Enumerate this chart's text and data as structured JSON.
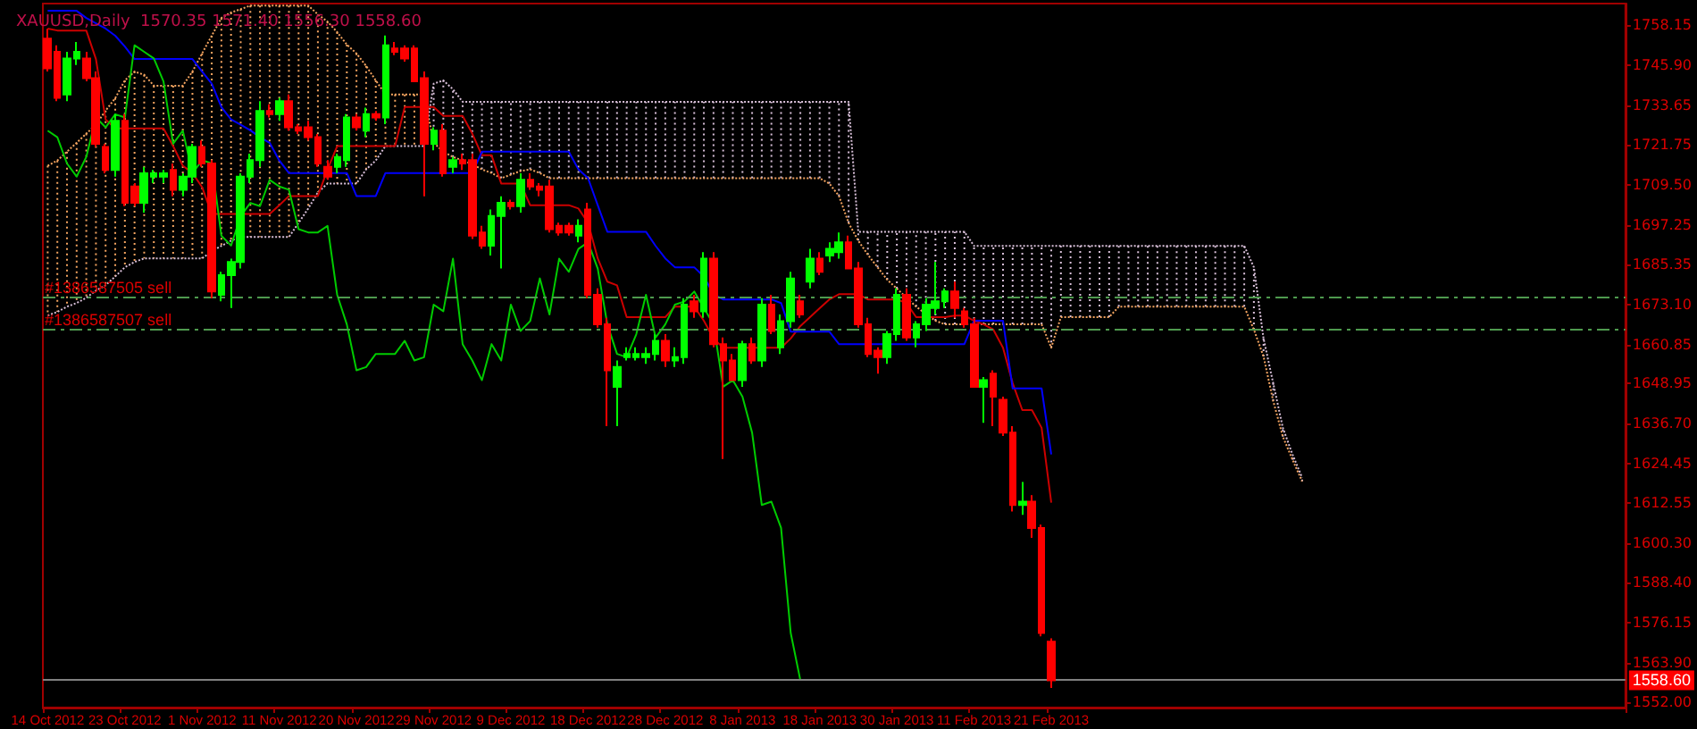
{
  "chart_data": {
    "type": "candlestick",
    "title": "XAUUSD,Daily  1570.35 1571.40 1556.30 1558.60",
    "categories": [
      "14 Oct 2012",
      null,
      null,
      null,
      null,
      null,
      null,
      null,
      "23 Oct 2012",
      null,
      null,
      null,
      null,
      null,
      null,
      null,
      "1 Nov 2012",
      null,
      null,
      null,
      null,
      null,
      null,
      null,
      "11 Nov 2012",
      null,
      null,
      null,
      null,
      null,
      null,
      null,
      "20 Nov 2012",
      null,
      null,
      null,
      null,
      null,
      null,
      null,
      "29 Nov 2012",
      null,
      null,
      null,
      null,
      null,
      null,
      null,
      "9 Dec 2012",
      null,
      null,
      null,
      null,
      null,
      null,
      null,
      "18 Dec 2012",
      null,
      null,
      null,
      null,
      null,
      null,
      null,
      "28 Dec 2012",
      null,
      null,
      null,
      null,
      null,
      null,
      null,
      "8 Jan 2013",
      null,
      null,
      null,
      null,
      null,
      null,
      null,
      "18 Jan 2013",
      null,
      null,
      null,
      null,
      null,
      null,
      null,
      "30 Jan 2013",
      null,
      null,
      null,
      null,
      null,
      null,
      null,
      "11 Feb 2013",
      null,
      null,
      null,
      null,
      null,
      null,
      null,
      "21 Feb 2013",
      null,
      null,
      null,
      null,
      null,
      null,
      null,
      null,
      null,
      null,
      null,
      null,
      null,
      null,
      null,
      null,
      null,
      null,
      null,
      null,
      null,
      null,
      null,
      null,
      null,
      null,
      null,
      null,
      null,
      null,
      null,
      null,
      null,
      null,
      null,
      null,
      null,
      null,
      null,
      null,
      null,
      null,
      null,
      null,
      null,
      null,
      null,
      null,
      null,
      null,
      null,
      null,
      null,
      null,
      null,
      null,
      null,
      null,
      null
    ],
    "ohlc": [
      [
        1754,
        1757,
        1744,
        1745
      ],
      [
        1750,
        1752,
        1735,
        1736
      ],
      [
        1737,
        1750,
        1735,
        1748
      ],
      [
        1748,
        1753,
        1746,
        1750
      ],
      [
        1748,
        1750,
        1741,
        1742
      ],
      [
        1742,
        1744,
        1721,
        1722
      ],
      [
        1721,
        1722,
        1713,
        1714
      ],
      [
        1714,
        1731,
        1712,
        1729
      ],
      [
        1729,
        1731,
        1703,
        1704
      ],
      [
        1709,
        1710,
        1703,
        1704
      ],
      [
        1704,
        1715,
        1701,
        1713
      ],
      [
        1712,
        1714,
        1710,
        1713
      ],
      [
        1712,
        1714,
        1710,
        1713
      ],
      [
        1714,
        1716,
        1706,
        1708
      ],
      [
        1708,
        1713,
        1706,
        1712
      ],
      [
        1712,
        1722,
        1710,
        1721
      ],
      [
        1721,
        1723,
        1715,
        1716
      ],
      [
        1716,
        1717,
        1675,
        1677
      ],
      [
        1676,
        1683,
        1674,
        1682
      ],
      [
        1682,
        1687,
        1672,
        1686
      ],
      [
        1686,
        1713,
        1684,
        1712
      ],
      [
        1712,
        1719,
        1710,
        1717
      ],
      [
        1717,
        1735,
        1715,
        1732
      ],
      [
        1732,
        1734,
        1730,
        1731
      ],
      [
        1731,
        1736,
        1729,
        1735
      ],
      [
        1735,
        1737,
        1726,
        1727
      ],
      [
        1727,
        1728,
        1725,
        1726
      ],
      [
        1727,
        1729,
        1723,
        1724
      ],
      [
        1724,
        1725,
        1715,
        1716
      ],
      [
        1715,
        1717,
        1711,
        1712
      ],
      [
        1715,
        1719,
        1713,
        1718
      ],
      [
        1717,
        1731,
        1715,
        1730
      ],
      [
        1730,
        1731,
        1726,
        1727
      ],
      [
        1726,
        1733,
        1724,
        1731
      ],
      [
        1731,
        1732,
        1729,
        1730
      ],
      [
        1730,
        1755,
        1728,
        1752
      ],
      [
        1751,
        1753,
        1749,
        1750
      ],
      [
        1751,
        1752,
        1747,
        1748
      ],
      [
        1751,
        1752,
        1741,
        1741
      ],
      [
        1742,
        1744,
        1706,
        1722
      ],
      [
        1722,
        1727,
        1720,
        1726
      ],
      [
        1726,
        1728,
        1712,
        1713
      ],
      [
        1715,
        1718,
        1713,
        1717
      ],
      [
        1717,
        1719,
        1714,
        1716
      ],
      [
        1717,
        1719,
        1693,
        1694
      ],
      [
        1695,
        1697,
        1690,
        1691
      ],
      [
        1691,
        1702,
        1688,
        1700
      ],
      [
        1700,
        1706,
        1684,
        1704
      ],
      [
        1704,
        1705,
        1702,
        1703
      ],
      [
        1703,
        1713,
        1701,
        1711
      ],
      [
        1711,
        1713,
        1708,
        1709
      ],
      [
        1709,
        1710,
        1706,
        1708
      ],
      [
        1709,
        1711,
        1695,
        1696
      ],
      [
        1697,
        1698,
        1694,
        1695
      ],
      [
        1697,
        1698,
        1694,
        1695
      ],
      [
        1694,
        1699,
        1692,
        1697
      ],
      [
        1702,
        1704,
        1675,
        1676
      ],
      [
        1676,
        1678,
        1666,
        1667
      ],
      [
        1667,
        1669,
        1636,
        1653
      ],
      [
        1648,
        1656,
        1636,
        1654
      ],
      [
        1657,
        1660,
        1656,
        1658
      ],
      [
        1657,
        1660,
        1656,
        1658
      ],
      [
        1657,
        1660,
        1655,
        1658
      ],
      [
        1658,
        1664,
        1656,
        1662
      ],
      [
        1662,
        1664,
        1654,
        1656
      ],
      [
        1656,
        1660,
        1654,
        1657
      ],
      [
        1657,
        1675,
        1655,
        1673
      ],
      [
        1674,
        1676,
        1669,
        1671
      ],
      [
        1671,
        1689,
        1669,
        1687
      ],
      [
        1687,
        1689,
        1660,
        1661
      ],
      [
        1661,
        1663,
        1626,
        1656
      ],
      [
        1656,
        1658,
        1650,
        1650
      ],
      [
        1650,
        1662,
        1648,
        1661
      ],
      [
        1661,
        1663,
        1655,
        1656
      ],
      [
        1656,
        1675,
        1654,
        1673
      ],
      [
        1673,
        1676,
        1664,
        1665
      ],
      [
        1660,
        1670,
        1658,
        1668
      ],
      [
        1668,
        1683,
        1666,
        1681
      ],
      [
        1674,
        1676,
        1669,
        1670
      ],
      [
        1680,
        1690,
        1678,
        1687
      ],
      [
        1687,
        1689,
        1682,
        1683
      ],
      [
        1688,
        1692,
        1686,
        1690
      ],
      [
        1689,
        1695,
        1687,
        1692
      ],
      [
        1692,
        1694,
        1684,
        1684
      ],
      [
        1684,
        1686,
        1666,
        1667
      ],
      [
        1667,
        1669,
        1657,
        1658
      ],
      [
        1659,
        1660,
        1652,
        1657
      ],
      [
        1657,
        1665,
        1655,
        1664
      ],
      [
        1664,
        1678,
        1662,
        1676
      ],
      [
        1676,
        1678,
        1662,
        1663
      ],
      [
        1663,
        1668,
        1660,
        1667
      ],
      [
        1667,
        1675,
        1665,
        1673
      ],
      [
        1672,
        1686,
        1670,
        1674
      ],
      [
        1674,
        1678,
        1672,
        1677
      ],
      [
        1677,
        1680,
        1669,
        1672
      ],
      [
        1671,
        1672,
        1666,
        1667
      ],
      [
        1667,
        1669,
        1648,
        1648
      ],
      [
        1648,
        1651,
        1637,
        1650
      ],
      [
        1652,
        1653,
        1636,
        1645
      ],
      [
        1644,
        1645,
        1633,
        1634
      ],
      [
        1634,
        1636,
        1610,
        1612
      ],
      [
        1612,
        1619,
        1609,
        1613
      ],
      [
        1613,
        1615,
        1602,
        1605
      ],
      [
        1605,
        1606,
        1572,
        1573
      ],
      [
        1570.35,
        1571.4,
        1556.3,
        1558.6
      ],
      null,
      null,
      null,
      null,
      null,
      null,
      null,
      null,
      null,
      null,
      null,
      null,
      null,
      null,
      null,
      null,
      null,
      null,
      null,
      null,
      null,
      null,
      null,
      null,
      null,
      null,
      null,
      null,
      null,
      null,
      null,
      null,
      null,
      null,
      null,
      null,
      null,
      null,
      null,
      null,
      null,
      null,
      null,
      null,
      null,
      null,
      null,
      null,
      null,
      null,
      null,
      null,
      null,
      null,
      null,
      null,
      null,
      null,
      null
    ],
    "colors": [
      "#ff0000",
      "#ff0000",
      "#00ff00",
      "#00ff00",
      "#ff0000",
      "#ff0000",
      "#ff0000",
      "#00ff00",
      "#ff0000",
      "#ff0000",
      "#00ff00",
      "#00ff00",
      "#00ff00",
      "#ff0000",
      "#00ff00",
      "#00ff00",
      "#ff0000",
      "#ff0000",
      "#00ff00",
      "#00ff00",
      "#00ff00",
      "#00ff00",
      "#00ff00",
      "#ff0000",
      "#00ff00",
      "#ff0000",
      "#ff0000",
      "#ff0000",
      "#ff0000",
      "#ff0000",
      "#00ff00",
      "#00ff00",
      "#ff0000",
      "#00ff00",
      "#ff0000",
      "#00ff00",
      "#ff0000",
      "#ff0000",
      "#ff0000",
      "#ff0000",
      "#00ff00",
      "#ff0000",
      "#00ff00",
      "#ff0000",
      "#ff0000",
      "#ff0000",
      "#00ff00",
      "#00ff00",
      "#ff0000",
      "#00ff00",
      "#ff0000",
      "#ff0000",
      "#ff0000",
      "#ff0000",
      "#ff0000",
      "#00ff00",
      "#ff0000",
      "#ff0000",
      "#ff0000",
      "#00ff00",
      "#00ff00",
      "#00ff00",
      "#00ff00",
      "#00ff00",
      "#ff0000",
      "#00ff00",
      "#00ff00",
      "#ff0000",
      "#00ff00",
      "#ff0000",
      "#ff0000",
      "#ff0000",
      "#00ff00",
      "#ff0000",
      "#00ff00",
      "#ff0000",
      "#00ff00",
      "#00ff00",
      "#ff0000",
      "#00ff00",
      "#ff0000",
      "#00ff00",
      "#00ff00",
      "#ff0000",
      "#ff0000",
      "#ff0000",
      "#ff0000",
      "#00ff00",
      "#00ff00",
      "#ff0000",
      "#00ff00",
      "#00ff00",
      "#00ff00",
      "#00ff00",
      "#ff0000",
      "#ff0000",
      "#ff0000",
      "#00ff00",
      "#ff0000",
      "#ff0000",
      "#ff0000",
      "#00ff00",
      "#ff0000",
      "#ff0000",
      "#ff0000",
      null,
      null,
      null,
      null,
      null,
      null,
      null,
      null,
      null,
      null,
      null,
      null,
      null,
      null,
      null,
      null,
      null,
      null,
      null,
      null,
      null,
      null,
      null,
      null,
      null,
      null,
      null,
      null,
      null,
      null,
      null,
      null,
      null,
      null,
      null,
      null,
      null,
      null,
      null,
      null,
      null,
      null,
      null,
      null,
      null,
      null,
      null,
      null,
      null,
      null,
      null,
      null,
      null,
      null,
      null,
      null,
      null,
      null,
      null
    ],
    "series": [
      {
        "type": "line",
        "color": "#f4a460",
        "line_style": "dotted",
        "values": [
          1715.3,
          1716.9,
          1719.6,
          1722.3,
          1725.1,
          1727.8,
          1732.1,
          1735.9,
          1741.3,
          1744.0,
          1743.0,
          1739.7,
          1739.7,
          1739.7,
          1739.7,
          1744.0,
          1749.5,
          1754.9,
          1760.3,
          1762.0,
          1763.0,
          1764.1,
          1764.1,
          1764.1,
          1764.1,
          1764.1,
          1764.1,
          1764.1,
          1761.4,
          1759.2,
          1756.0,
          1752.2,
          1749.5,
          1745.7,
          1741.3,
          1737.0,
          1737.0,
          1737.0,
          1737.0,
          1737.0,
          1722.3,
          1719.6,
          1718.0,
          1716.9,
          1715.8,
          1714.2,
          1713.1,
          1711.5,
          1712.6,
          1713.7,
          1714.2,
          1713.1,
          1711.5,
          1711.5,
          1711.5,
          1711.5,
          1711.5,
          1711.5,
          1711.5,
          1711.5,
          1711.5,
          1711.5,
          1711.5,
          1711.5,
          1711.5,
          1711.5,
          1711.5,
          1711.5,
          1711.5,
          1711.5,
          1711.5,
          1711.5,
          1711.5,
          1711.5,
          1711.5,
          1711.5,
          1711.5,
          1711.5,
          1711.5,
          1711.5,
          1711.5,
          1709.9,
          1706.1,
          1697.9,
          1692.5,
          1688.2,
          1684.4,
          1680.6,
          1677.9,
          1675.1,
          1672.4,
          1670.2,
          1668.1,
          1667.0,
          1667.0,
          1667.0,
          1667.0,
          1667.0,
          1667.0,
          1667.0,
          1667.0,
          1667.0,
          1667.0,
          1667.0,
          1659.9,
          1669.2,
          1669.2,
          1669.2,
          1669.2,
          1669.2,
          1669.2,
          1672.4,
          1672.4,
          1672.4,
          1672.4,
          1672.4,
          1672.4,
          1672.4,
          1672.4,
          1672.4,
          1672.4,
          1672.4,
          1672.4,
          1672.4,
          1672.4,
          1665.4,
          1657.2,
          1643.7,
          1632.8,
          1625.8,
          1619.2,
          null,
          null,
          null,
          null,
          null,
          null,
          null,
          null,
          null,
          null,
          null,
          null,
          null,
          null,
          null,
          null,
          null,
          null,
          null,
          null,
          null,
          null,
          null,
          null,
          null,
          null,
          null,
          null,
          null,
          null,
          null,
          null,
          null
        ]
      },
      {
        "type": "line",
        "color": "#d8bfd8",
        "line_style": "dotted",
        "values": [
          1669.7,
          1670.8,
          1672.4,
          1673.5,
          1675.1,
          1677.3,
          1678.9,
          1681.6,
          1684.4,
          1686.0,
          1687.1,
          1687.1,
          1687.1,
          1687.1,
          1687.1,
          1687.1,
          1687.1,
          1689.2,
          1690.9,
          1692.5,
          1693.6,
          1693.6,
          1693.6,
          1693.6,
          1693.6,
          1693.6,
          1697.9,
          1702.3,
          1707.2,
          1709.9,
          1709.9,
          1709.9,
          1709.9,
          1714.2,
          1716.9,
          1721.3,
          1721.3,
          1721.3,
          1721.3,
          1721.3,
          1740.3,
          1741.3,
          1738.6,
          1734.8,
          1734.8,
          1734.8,
          1734.8,
          1734.8,
          1734.8,
          1734.8,
          1734.8,
          1734.8,
          1734.8,
          1734.8,
          1734.8,
          1734.8,
          1734.8,
          1734.8,
          1734.8,
          1734.8,
          1734.8,
          1734.8,
          1734.8,
          1734.8,
          1734.8,
          1734.8,
          1734.8,
          1734.8,
          1734.8,
          1734.8,
          1734.8,
          1734.8,
          1734.8,
          1734.8,
          1734.8,
          1734.8,
          1734.8,
          1734.8,
          1734.8,
          1734.8,
          1734.8,
          1734.8,
          1734.8,
          1734.8,
          1695.2,
          1695.2,
          1695.2,
          1695.2,
          1695.2,
          1695.2,
          1695.2,
          1695.2,
          1695.2,
          1695.2,
          1695.2,
          1695.2,
          1690.9,
          1690.9,
          1690.9,
          1690.9,
          1690.9,
          1690.9,
          1690.9,
          1690.9,
          1690.9,
          1690.9,
          1690.9,
          1690.9,
          1690.9,
          1690.9,
          1690.9,
          1690.9,
          1690.9,
          1690.9,
          1690.9,
          1690.9,
          1690.9,
          1690.9,
          1690.9,
          1690.9,
          1690.9,
          1690.9,
          1690.9,
          1690.9,
          1690.9,
          1684.4,
          1662.7,
          1649.1,
          1635.5,
          1627.4,
          1620.3,
          null,
          null,
          null,
          null,
          null,
          null,
          null,
          null,
          null,
          null,
          null,
          null,
          null,
          null,
          null,
          null,
          null,
          null,
          null,
          null,
          null,
          null,
          null,
          null,
          null,
          null,
          null,
          null,
          null,
          null,
          null,
          null,
          null
        ]
      },
      {
        "type": "line",
        "color": "#cc0000",
        "values": [
          1757.1,
          1756.5,
          1756.5,
          1756.5,
          1756.5,
          1747.8,
          1729.4,
          1726.7,
          1726.7,
          1726.7,
          1726.7,
          1726.7,
          1726.7,
          1721.3,
          1715.3,
          1713.1,
          1708.8,
          1700.6,
          1700.6,
          1700.6,
          1700.6,
          1700.6,
          1700.6,
          1700.6,
          1703.3,
          1706.1,
          1706.1,
          1706.1,
          1706.1,
          1714.2,
          1721.3,
          1721.3,
          1721.3,
          1721.3,
          1721.3,
          1721.3,
          1721.3,
          1733.2,
          1733.2,
          1733.2,
          1733.2,
          1730.5,
          1730.5,
          1730.5,
          1725.1,
          1718.5,
          1718.5,
          1709.9,
          1709.9,
          1709.9,
          1703.3,
          1703.3,
          1703.3,
          1703.3,
          1703.3,
          1702.3,
          1697.9,
          1687.1,
          1680.0,
          1678.9,
          1669.2,
          1669.2,
          1669.2,
          1669.2,
          1669.2,
          1672.4,
          1672.4,
          1672.4,
          1668.1,
          1662.7,
          1659.9,
          1659.9,
          1659.9,
          1659.9,
          1659.9,
          1659.9,
          1659.9,
          1662.7,
          1666.5,
          1669.2,
          1671.9,
          1674.6,
          1676.2,
          1676.2,
          1676.2,
          1674.6,
          1674.6,
          1674.6,
          1674.6,
          1673.5,
          1669.2,
          1669.2,
          1669.2,
          1669.2,
          1669.7,
          1669.7,
          1668.1,
          1667.0,
          1665.4,
          1659.9,
          1649.1,
          1640.9,
          1640.9,
          1635.5,
          1612.7,
          null,
          null,
          null,
          null,
          null,
          null,
          null,
          null,
          null,
          null,
          null,
          null,
          null,
          null,
          null,
          null,
          null,
          null,
          null,
          null,
          null,
          null,
          null,
          null,
          null,
          null,
          null,
          null,
          null,
          null,
          null,
          null,
          null,
          null,
          null,
          null,
          null,
          null,
          null,
          null,
          null,
          null,
          null,
          null,
          null,
          null,
          null,
          null,
          null,
          null,
          null,
          null,
          null,
          null,
          null,
          null,
          null,
          null,
          null
        ]
      },
      {
        "type": "line",
        "color": "#0000ff",
        "values": [
          1762.5,
          1762.5,
          1762.5,
          1762.5,
          1760.3,
          1758.7,
          1757.1,
          1754.9,
          1751.6,
          1747.8,
          1747.8,
          1747.8,
          1747.8,
          1747.8,
          1747.8,
          1747.8,
          1744.0,
          1740.3,
          1733.2,
          1729.4,
          1727.8,
          1726.1,
          1724.0,
          1722.3,
          1716.9,
          1713.1,
          1713.1,
          1713.1,
          1713.1,
          1713.1,
          1713.1,
          1713.1,
          1706.1,
          1706.1,
          1706.1,
          1713.1,
          1713.1,
          1713.1,
          1713.1,
          1713.1,
          1713.1,
          1713.1,
          1713.1,
          1713.1,
          1713.1,
          1719.6,
          1719.6,
          1719.6,
          1719.6,
          1719.6,
          1719.6,
          1719.6,
          1719.6,
          1719.6,
          1719.6,
          1714.2,
          1711.5,
          1703.3,
          1695.2,
          1695.2,
          1695.2,
          1695.2,
          1695.2,
          1690.9,
          1687.1,
          1684.4,
          1684.4,
          1684.4,
          1681.6,
          1676.2,
          1674.6,
          1674.6,
          1674.6,
          1674.6,
          1674.6,
          1674.6,
          1673.5,
          1664.8,
          1664.8,
          1664.8,
          1664.8,
          1664.8,
          1661.0,
          1661.0,
          1661.0,
          1661.0,
          1661.0,
          1661.0,
          1661.0,
          1661.0,
          1661.0,
          1661.0,
          1661.0,
          1661.0,
          1661.0,
          1661.0,
          1668.1,
          1668.1,
          1668.1,
          1668.1,
          1647.5,
          1647.5,
          1647.5,
          1647.5,
          1627.4,
          null,
          null,
          null,
          null,
          null,
          null,
          null,
          null,
          null,
          null,
          null,
          null,
          null,
          null,
          null,
          null,
          null,
          null,
          null,
          null,
          null,
          null,
          null,
          null,
          null,
          null,
          null,
          null,
          null,
          null,
          null,
          null,
          null,
          null,
          null,
          null,
          null,
          null,
          null,
          null,
          null,
          null,
          null,
          null,
          null,
          null,
          null,
          null,
          null,
          null,
          null,
          null,
          null,
          null,
          null,
          null,
          null,
          null,
          null
        ]
      },
      {
        "type": "line",
        "color": "#00cc00",
        "values": [
          1726,
          1724,
          1716,
          1712,
          1718,
          1730,
          1727,
          1731,
          1730,
          1752,
          1750,
          1748,
          1741,
          1722,
          1726,
          1713,
          1717,
          1716,
          1694,
          1691,
          1700,
          1704,
          1703,
          1711,
          1709,
          1708,
          1696,
          1695,
          1695,
          1697,
          1676,
          1667,
          1653,
          1654,
          1658,
          1658,
          1658,
          1662,
          1656,
          1657,
          1673,
          1671,
          1687,
          1661,
          1656,
          1650,
          1661,
          1656,
          1673,
          1665,
          1668,
          1681,
          1670,
          1687,
          1683,
          1690,
          1692,
          1684,
          1667,
          1658,
          1657,
          1664,
          1676,
          1663,
          1667,
          1673,
          1674,
          1677,
          1672,
          1667,
          1648,
          1650,
          1645,
          1634,
          1612,
          1613,
          1605,
          1573,
          1558.6,
          null,
          null,
          null,
          null,
          null,
          null,
          null,
          null,
          null,
          null,
          null,
          null,
          null,
          null,
          null,
          null,
          null,
          null,
          null,
          null,
          null,
          null,
          null,
          null,
          null,
          null,
          null,
          null,
          null,
          null,
          null,
          null,
          null,
          null,
          null,
          null,
          null,
          null,
          null,
          null,
          null,
          null,
          null,
          null,
          null,
          null,
          null,
          null,
          null,
          null,
          null,
          null,
          null,
          null,
          null,
          null,
          null,
          null,
          null,
          null,
          null,
          null,
          null,
          null,
          null,
          null,
          null,
          null,
          null,
          null,
          null,
          null,
          null,
          null,
          null,
          null,
          null,
          null,
          null,
          null,
          null,
          null,
          null,
          null,
          null
        ]
      }
    ],
    "ref_lines": [
      {
        "axis": "y",
        "value": 1675.1,
        "label": "#1386587505 sell",
        "color": "#4e9a4e",
        "line_style": "dashdot"
      },
      {
        "axis": "y",
        "value": 1665.4,
        "label": "#1386587507 sell",
        "color": "#4e9a4e",
        "line_style": "dashdot"
      },
      {
        "axis": "y",
        "value": 1558.6,
        "label": "1558.60",
        "color": "#808080",
        "line_style": "solid"
      }
    ],
    "ylim": [
      1550.3,
      1764.7
    ],
    "yticks": [
      {
        "value": 1758.15,
        "label": "1758.15"
      },
      {
        "value": 1745.9,
        "label": "1745.90"
      },
      {
        "value": 1733.65,
        "label": "1733.65"
      },
      {
        "value": 1721.75,
        "label": "1721.75"
      },
      {
        "value": 1709.5,
        "label": "1709.50"
      },
      {
        "value": 1697.25,
        "label": "1697.25"
      },
      {
        "value": 1685.35,
        "label": "1685.35"
      },
      {
        "value": 1673.1,
        "label": "1673.10"
      },
      {
        "value": 1660.85,
        "label": "1660.85"
      },
      {
        "value": 1648.95,
        "label": "1648.95"
      },
      {
        "value": 1636.7,
        "label": "1636.70"
      },
      {
        "value": 1624.45,
        "label": "1624.45"
      },
      {
        "value": 1612.55,
        "label": "1612.55"
      },
      {
        "value": 1600.3,
        "label": "1600.30"
      },
      {
        "value": 1588.4,
        "label": "1588.40"
      },
      {
        "value": 1576.15,
        "label": "1576.15"
      },
      {
        "value": 1563.9,
        "label": "1563.90"
      },
      {
        "value": 1552.0,
        "label": "1552.00"
      }
    ],
    "marker": "none",
    "grid": false
  }
}
